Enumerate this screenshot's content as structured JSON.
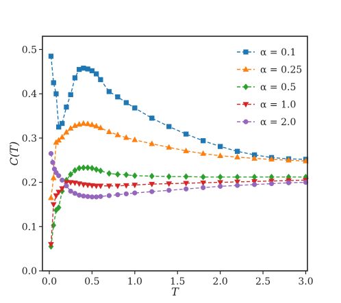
{
  "chart_data": {
    "type": "line",
    "title": "",
    "xlabel": "T",
    "ylabel": "C(T)",
    "xlim": [
      -0.08,
      3.02
    ],
    "ylim": [
      0.0,
      0.53
    ],
    "xticks": [
      0.0,
      0.5,
      1.0,
      1.5,
      2.0,
      2.5,
      3.0
    ],
    "xtick_labels": [
      "0.0",
      "0.5",
      "1.0",
      "1.5",
      "2.0",
      "2.5",
      "3.0"
    ],
    "yticks": [
      0.0,
      0.1,
      0.2,
      0.3,
      0.4,
      0.5
    ],
    "ytick_labels": [
      "0.0",
      "0.1",
      "0.2",
      "0.3",
      "0.4",
      "0.5"
    ],
    "grid": false,
    "legend_position": "top-right",
    "series": [
      {
        "name": "α = 0.1",
        "color": "#1f77b4",
        "marker": "square",
        "x": [
          0.02,
          0.05,
          0.08,
          0.11,
          0.15,
          0.2,
          0.25,
          0.3,
          0.35,
          0.4,
          0.45,
          0.5,
          0.55,
          0.6,
          0.7,
          0.8,
          0.9,
          1.0,
          1.2,
          1.4,
          1.6,
          1.8,
          2.0,
          2.2,
          2.4,
          2.6,
          2.8,
          3.0
        ],
        "y": [
          0.485,
          0.425,
          0.4,
          0.325,
          0.333,
          0.37,
          0.398,
          0.436,
          0.455,
          0.458,
          0.456,
          0.452,
          0.445,
          0.432,
          0.405,
          0.393,
          0.38,
          0.368,
          0.345,
          0.326,
          0.309,
          0.294,
          0.281,
          0.27,
          0.262,
          0.256,
          0.253,
          0.252
        ]
      },
      {
        "name": "α = 0.25",
        "color": "#ff7f0e",
        "marker": "triangle-up",
        "x": [
          0.02,
          0.05,
          0.08,
          0.11,
          0.15,
          0.2,
          0.25,
          0.3,
          0.35,
          0.4,
          0.45,
          0.5,
          0.55,
          0.6,
          0.7,
          0.8,
          0.9,
          1.0,
          1.2,
          1.4,
          1.6,
          1.8,
          2.0,
          2.2,
          2.4,
          2.6,
          2.8,
          3.0
        ],
        "y": [
          0.165,
          0.21,
          0.29,
          0.295,
          0.302,
          0.313,
          0.322,
          0.328,
          0.331,
          0.333,
          0.332,
          0.33,
          0.327,
          0.323,
          0.314,
          0.307,
          0.301,
          0.296,
          0.287,
          0.279,
          0.271,
          0.265,
          0.26,
          0.257,
          0.254,
          0.252,
          0.25,
          0.248
        ]
      },
      {
        "name": "α = 0.5",
        "color": "#2ca02c",
        "marker": "diamond",
        "x": [
          0.02,
          0.05,
          0.08,
          0.11,
          0.15,
          0.2,
          0.25,
          0.3,
          0.35,
          0.4,
          0.45,
          0.5,
          0.55,
          0.6,
          0.7,
          0.8,
          0.9,
          1.0,
          1.2,
          1.4,
          1.6,
          1.8,
          2.0,
          2.2,
          2.4,
          2.6,
          2.8,
          3.0
        ],
        "y": [
          0.055,
          0.103,
          0.137,
          0.143,
          0.18,
          0.205,
          0.218,
          0.227,
          0.232,
          0.233,
          0.233,
          0.232,
          0.229,
          0.226,
          0.22,
          0.218,
          0.217,
          0.215,
          0.214,
          0.213,
          0.213,
          0.212,
          0.212,
          0.212,
          0.212,
          0.212,
          0.212,
          0.212
        ]
      },
      {
        "name": "α = 1.0",
        "color": "#d62728",
        "marker": "triangle-down",
        "x": [
          0.02,
          0.05,
          0.08,
          0.11,
          0.15,
          0.2,
          0.25,
          0.3,
          0.35,
          0.4,
          0.45,
          0.5,
          0.55,
          0.6,
          0.7,
          0.8,
          0.9,
          1.0,
          1.2,
          1.4,
          1.6,
          1.8,
          2.0,
          2.2,
          2.4,
          2.6,
          2.8,
          3.0
        ],
        "y": [
          0.06,
          0.15,
          0.17,
          0.178,
          0.186,
          0.2,
          0.2,
          0.199,
          0.197,
          0.195,
          0.194,
          0.193,
          0.192,
          0.192,
          0.192,
          0.192,
          0.193,
          0.194,
          0.196,
          0.197,
          0.198,
          0.199,
          0.2,
          0.201,
          0.202,
          0.203,
          0.204,
          0.205
        ]
      },
      {
        "name": "α = 2.0",
        "color": "#9467bd",
        "marker": "circle",
        "x": [
          0.02,
          0.04,
          0.06,
          0.08,
          0.11,
          0.15,
          0.2,
          0.25,
          0.3,
          0.35,
          0.4,
          0.45,
          0.5,
          0.55,
          0.6,
          0.7,
          0.8,
          0.9,
          1.0,
          1.2,
          1.4,
          1.6,
          1.8,
          2.0,
          2.2,
          2.4,
          2.6,
          2.8,
          3.0
        ],
        "y": [
          0.265,
          0.245,
          0.23,
          0.222,
          0.215,
          0.205,
          0.192,
          0.18,
          0.175,
          0.171,
          0.169,
          0.168,
          0.167,
          0.167,
          0.168,
          0.17,
          0.172,
          0.174,
          0.176,
          0.179,
          0.182,
          0.185,
          0.188,
          0.191,
          0.193,
          0.195,
          0.197,
          0.199,
          0.2
        ]
      }
    ]
  }
}
